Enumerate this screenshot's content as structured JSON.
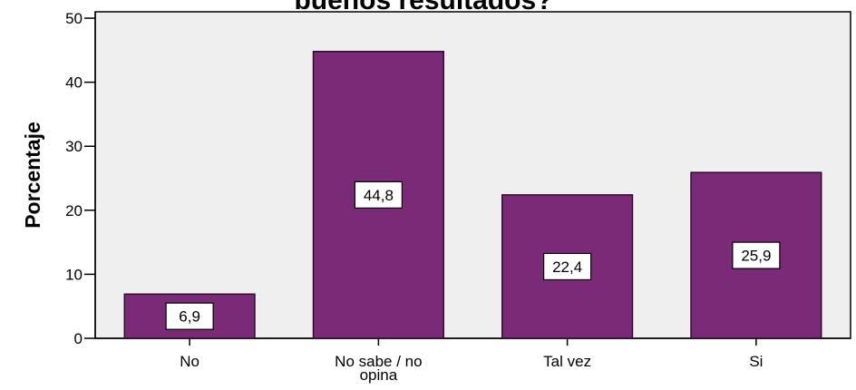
{
  "chart_data": {
    "type": "bar",
    "title": "buenos resultados?",
    "xlabel": "",
    "ylabel": "Porcentaje",
    "categories": [
      "No",
      "No sabe / no opina",
      "Tal vez",
      "Si"
    ],
    "category_lines": [
      [
        "No"
      ],
      [
        "No sabe / no",
        "opina"
      ],
      [
        "Tal vez"
      ],
      [
        "Si"
      ]
    ],
    "values": [
      6.9,
      44.8,
      22.4,
      25.9
    ],
    "data_labels": [
      "6,9",
      "44,8",
      "22,4",
      "25,9"
    ],
    "ylim": [
      0,
      51
    ],
    "yticks": [
      0,
      10,
      20,
      30,
      40,
      50
    ],
    "grid": false,
    "legend": "none",
    "colors": {
      "bar": "#7b2a78",
      "bar_edge": "#2b0d2a",
      "plot_bg": "#efefef",
      "axis": "#000000",
      "label_box": "#ffffff"
    }
  }
}
